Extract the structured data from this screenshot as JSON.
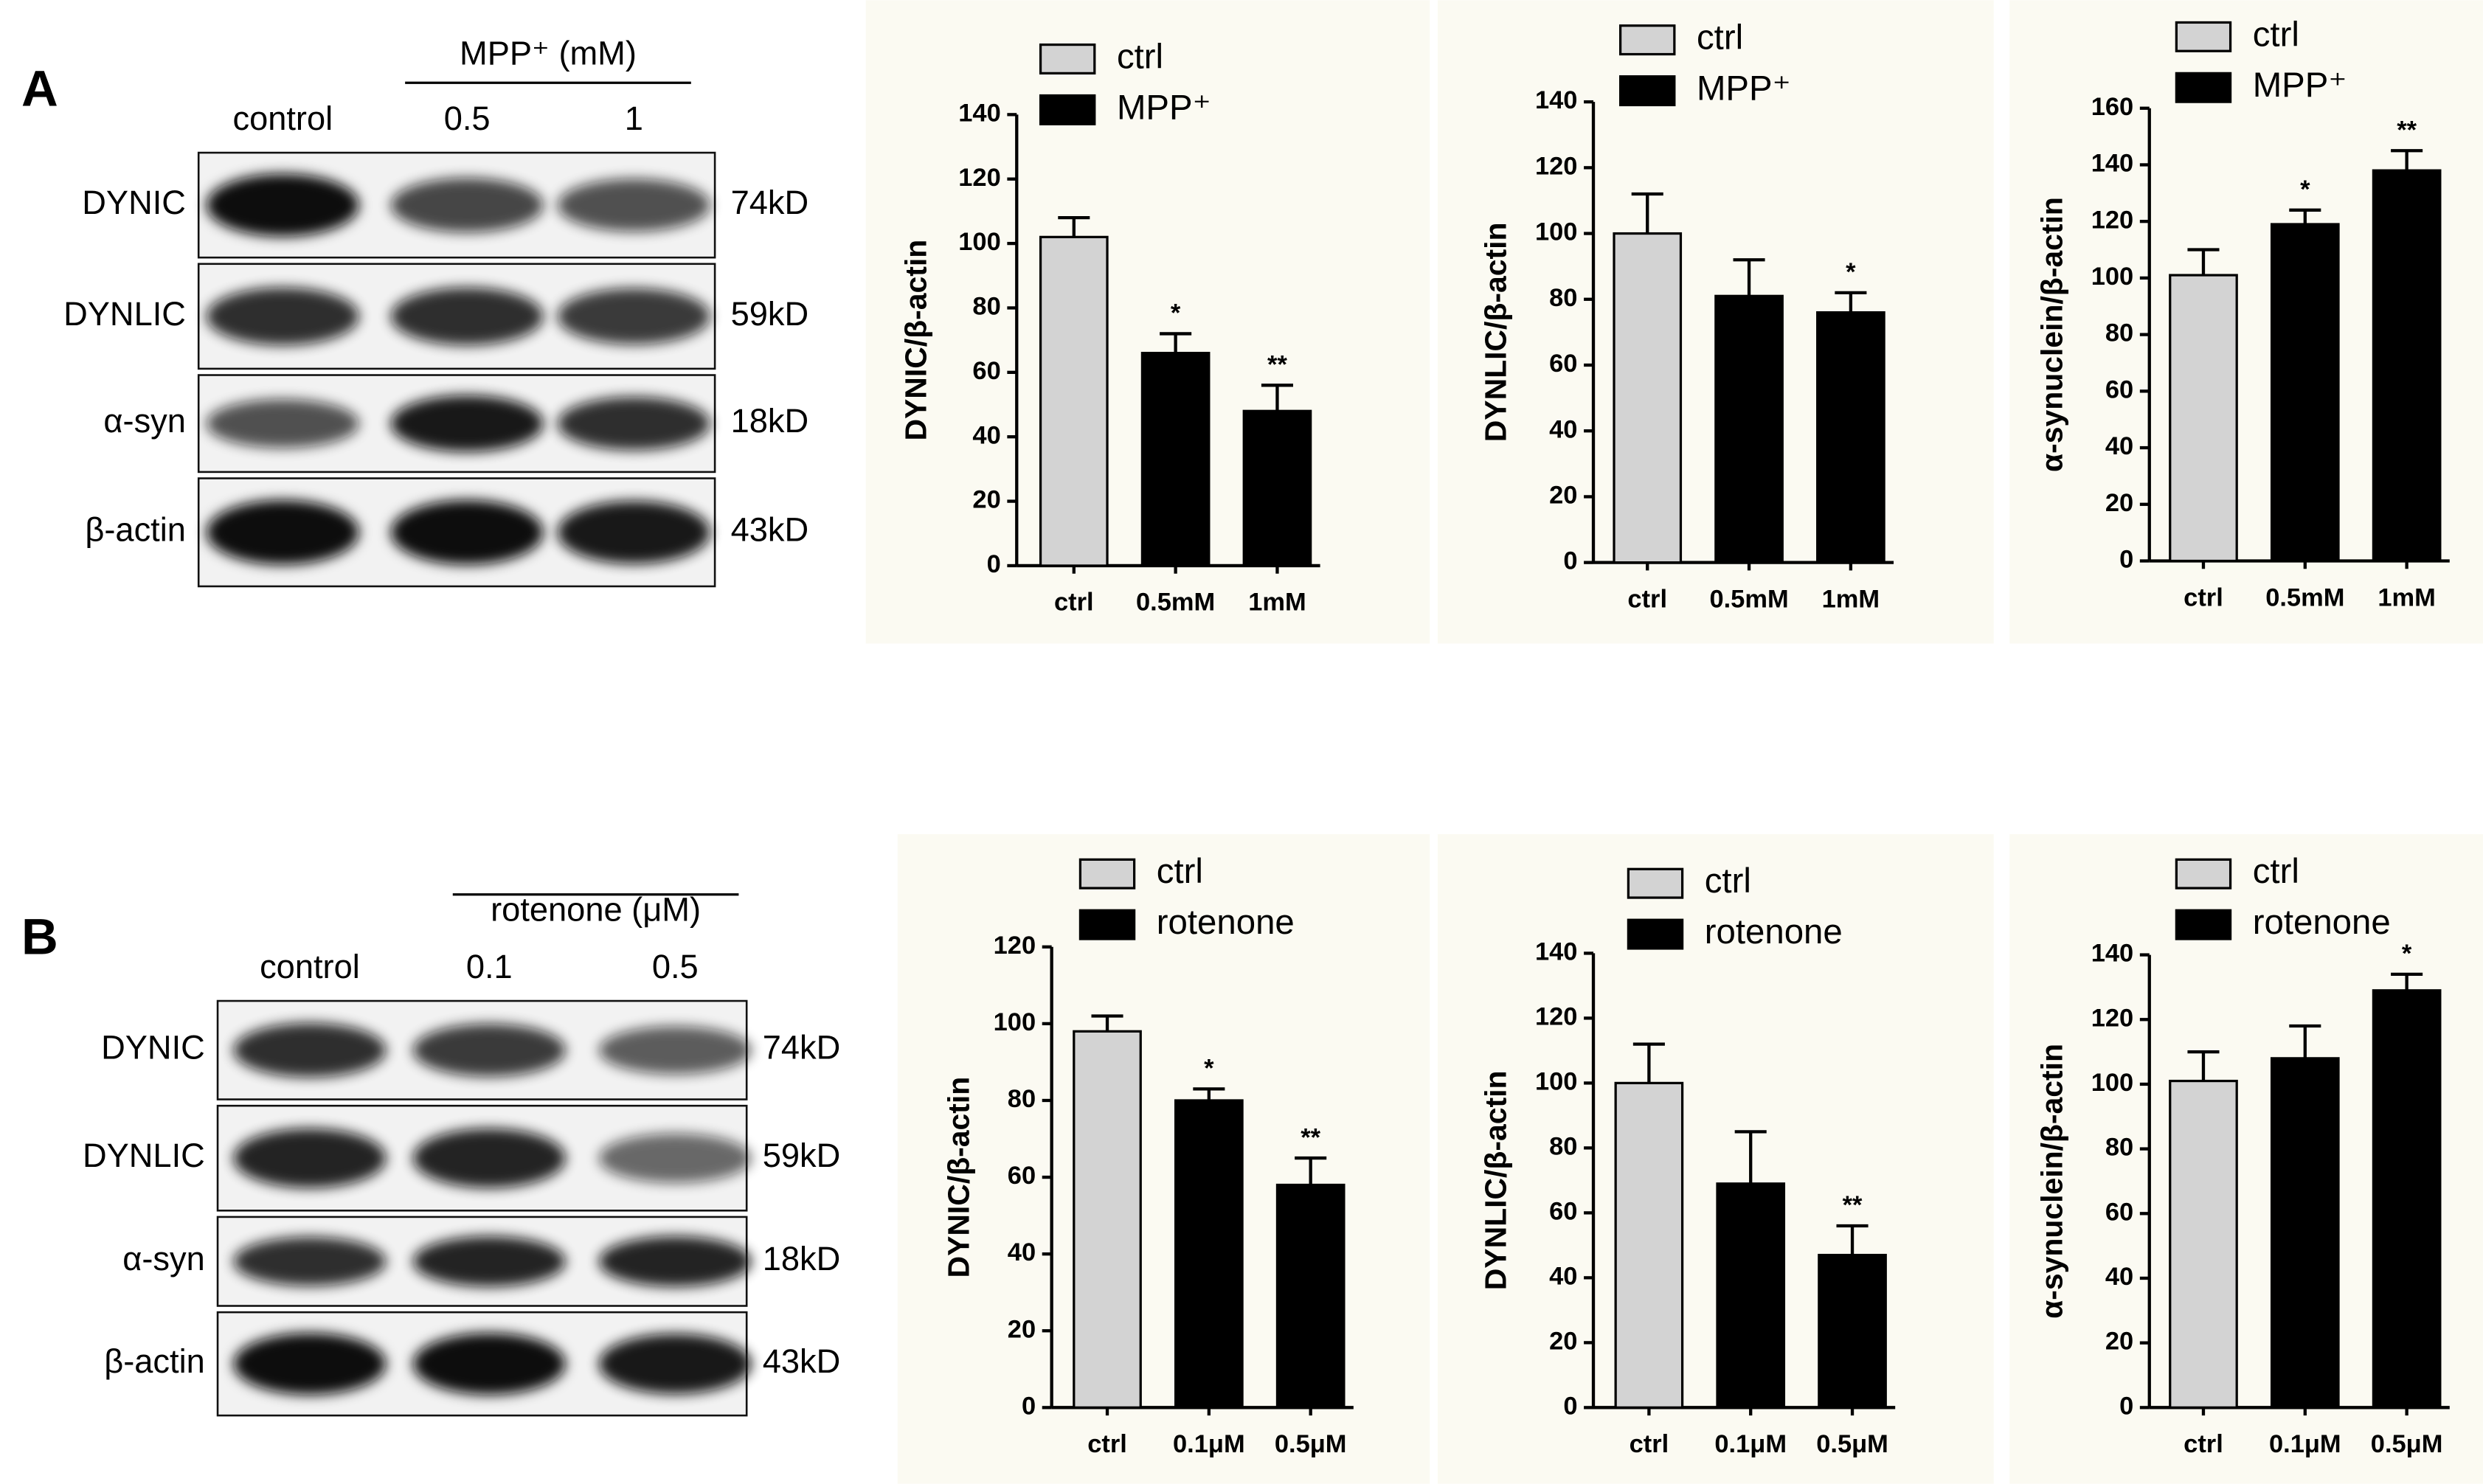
{
  "panels": [
    {
      "label": "A",
      "treatment": "MPP⁺ (mM)",
      "conditions": [
        "control",
        "0.5",
        "1"
      ],
      "blot_rows": [
        {
          "protein": "DYNIC",
          "size": "74kD"
        },
        {
          "protein": "DYNLIC",
          "size": "59kD"
        },
        {
          "protein": "α-syn",
          "size": "18kD"
        },
        {
          "protein": "β-actin",
          "size": "43kD"
        }
      ]
    },
    {
      "label": "B",
      "treatment": "rotenone (μM)",
      "conditions": [
        "control",
        "0.1",
        "0.5"
      ],
      "blot_rows": [
        {
          "protein": "DYNIC",
          "size": "74kD"
        },
        {
          "protein": "DYNLIC",
          "size": "59kD"
        },
        {
          "protein": "α-syn",
          "size": "18kD"
        },
        {
          "protein": "β-actin",
          "size": "43kD"
        }
      ]
    }
  ],
  "chart_data": [
    {
      "type": "bar",
      "y_label": "DYNIC/β-actin",
      "categories": [
        "ctrl",
        "0.5mM",
        "1mM"
      ],
      "series": [
        {
          "name": "ctrl",
          "color": "#d3d3d3",
          "values": [
            102,
            null,
            null
          ],
          "errors": [
            6,
            null,
            null
          ]
        },
        {
          "name": "MPP⁺",
          "color": "#000000",
          "values": [
            null,
            66,
            48
          ],
          "errors": [
            null,
            6,
            8
          ]
        }
      ],
      "significance": [
        null,
        "*",
        "**"
      ],
      "ylim": [
        0,
        140
      ],
      "yticks": [
        0,
        20,
        40,
        60,
        80,
        100,
        120,
        140
      ]
    },
    {
      "type": "bar",
      "y_label": "DYNLIC/β-actin",
      "categories": [
        "ctrl",
        "0.5mM",
        "1mM"
      ],
      "series": [
        {
          "name": "ctrl",
          "color": "#d3d3d3",
          "values": [
            100,
            null,
            null
          ],
          "errors": [
            12,
            null,
            null
          ]
        },
        {
          "name": "MPP⁺",
          "color": "#000000",
          "values": [
            null,
            81,
            76
          ],
          "errors": [
            null,
            11,
            6
          ]
        }
      ],
      "significance": [
        null,
        null,
        "*"
      ],
      "ylim": [
        0,
        140
      ],
      "yticks": [
        0,
        20,
        40,
        60,
        80,
        100,
        120,
        140
      ]
    },
    {
      "type": "bar",
      "y_label": "α-synuclein/β-actin",
      "categories": [
        "ctrl",
        "0.5mM",
        "1mM"
      ],
      "series": [
        {
          "name": "ctrl",
          "color": "#d3d3d3",
          "values": [
            101,
            null,
            null
          ],
          "errors": [
            9,
            null,
            null
          ]
        },
        {
          "name": "MPP⁺",
          "color": "#000000",
          "values": [
            null,
            119,
            138
          ],
          "errors": [
            null,
            5,
            7
          ]
        }
      ],
      "significance": [
        null,
        "*",
        "**"
      ],
      "ylim": [
        0,
        160
      ],
      "yticks": [
        0,
        20,
        40,
        60,
        80,
        100,
        120,
        140,
        160
      ]
    },
    {
      "type": "bar",
      "y_label": "DYNIC/β-actin",
      "categories": [
        "ctrl",
        "0.1μM",
        "0.5μM"
      ],
      "series": [
        {
          "name": "ctrl",
          "color": "#d3d3d3",
          "values": [
            98,
            null,
            null
          ],
          "errors": [
            4,
            null,
            null
          ]
        },
        {
          "name": "rotenone",
          "color": "#000000",
          "values": [
            null,
            80,
            58
          ],
          "errors": [
            null,
            3,
            7
          ]
        }
      ],
      "significance": [
        null,
        "*",
        "**"
      ],
      "ylim": [
        0,
        120
      ],
      "yticks": [
        0,
        20,
        40,
        60,
        80,
        100,
        120
      ]
    },
    {
      "type": "bar",
      "y_label": "DYNLIC/β-actin",
      "categories": [
        "ctrl",
        "0.1μM",
        "0.5μM"
      ],
      "series": [
        {
          "name": "ctrl",
          "color": "#d3d3d3",
          "values": [
            100,
            null,
            null
          ],
          "errors": [
            12,
            null,
            null
          ]
        },
        {
          "name": "rotenone",
          "color": "#000000",
          "values": [
            null,
            69,
            47
          ],
          "errors": [
            null,
            16,
            9
          ]
        }
      ],
      "significance": [
        null,
        null,
        "**"
      ],
      "ylim": [
        0,
        140
      ],
      "yticks": [
        0,
        20,
        40,
        60,
        80,
        100,
        120,
        140
      ]
    },
    {
      "type": "bar",
      "y_label": "α-synuclein/β-actin",
      "categories": [
        "ctrl",
        "0.1μM",
        "0.5μM"
      ],
      "series": [
        {
          "name": "ctrl",
          "color": "#d3d3d3",
          "values": [
            101,
            null,
            null
          ],
          "errors": [
            9,
            null,
            null
          ]
        },
        {
          "name": "rotenone",
          "color": "#000000",
          "values": [
            null,
            108,
            129
          ],
          "errors": [
            null,
            10,
            5
          ]
        }
      ],
      "significance": [
        null,
        null,
        "*"
      ],
      "ylim": [
        0,
        140
      ],
      "yticks": [
        0,
        20,
        40,
        60,
        80,
        100,
        120,
        140
      ]
    }
  ]
}
